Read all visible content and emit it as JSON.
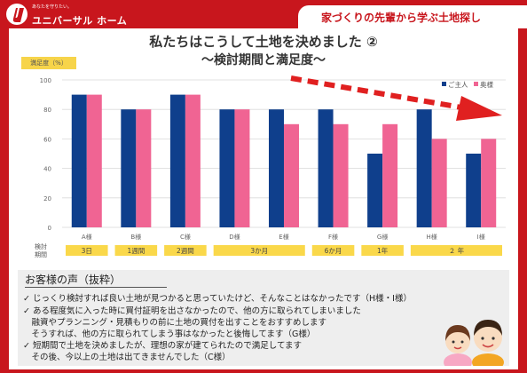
{
  "header": {
    "logo_tagline": "あなたを守りたい。",
    "logo_text": "ユニバーサル ホーム",
    "tab_title": "家づくりの先輩から学ぶ土地探し"
  },
  "chart_data": {
    "type": "bar",
    "title": "私たちはこうして土地を決めました ②",
    "subtitle": "～検討期間と満足度～",
    "ylabel": "満足度（%）",
    "ylim": [
      0,
      100
    ],
    "yticks": [
      0,
      20,
      40,
      60,
      80,
      100
    ],
    "categories": [
      "A様",
      "B様",
      "C様",
      "D様",
      "E様",
      "F様",
      "G様",
      "H様",
      "I様"
    ],
    "series": [
      {
        "name": "ご主人",
        "color": "#0f3f8c",
        "values": [
          90,
          80,
          90,
          80,
          80,
          80,
          50,
          80,
          50
        ]
      },
      {
        "name": "奥様",
        "color": "#f06493",
        "values": [
          90,
          80,
          90,
          80,
          70,
          70,
          70,
          60,
          60
        ]
      }
    ],
    "period_label": "検討\n期間",
    "periods": [
      {
        "label": "3日",
        "start": 0,
        "end": 0
      },
      {
        "label": "1週間",
        "start": 1,
        "end": 1
      },
      {
        "label": "2週間",
        "start": 2,
        "end": 2
      },
      {
        "label": "3か月",
        "start": 3,
        "end": 4
      },
      {
        "label": "6か月",
        "start": 5,
        "end": 5
      },
      {
        "label": "1年",
        "start": 6,
        "end": 6
      },
      {
        "label": "２ 年",
        "start": 7,
        "end": 8
      }
    ],
    "grid": true,
    "legend": "top-right"
  },
  "voice": {
    "title": "お客様の声（抜粋）",
    "lines": [
      "✓ じっくり検討すれば良い土地が見つかると思っていたけど、そんなことはなかったです（H様・I様）",
      "✓ ある程度気に入った時に買付証明を出さなかったので、他の方に取られてしまいました",
      "　融資やプランニング・見積もりの前に土地の買付を出すことをおすすめします",
      "　そうすれば、他の方に取られてしまう事はなかったと後悔してます（G様）",
      "✓ 短期間で土地を決めましたが、理想の家が建てられたので満足してます",
      "　その後、今以上の土地は出てきませんでした（C様）"
    ]
  }
}
